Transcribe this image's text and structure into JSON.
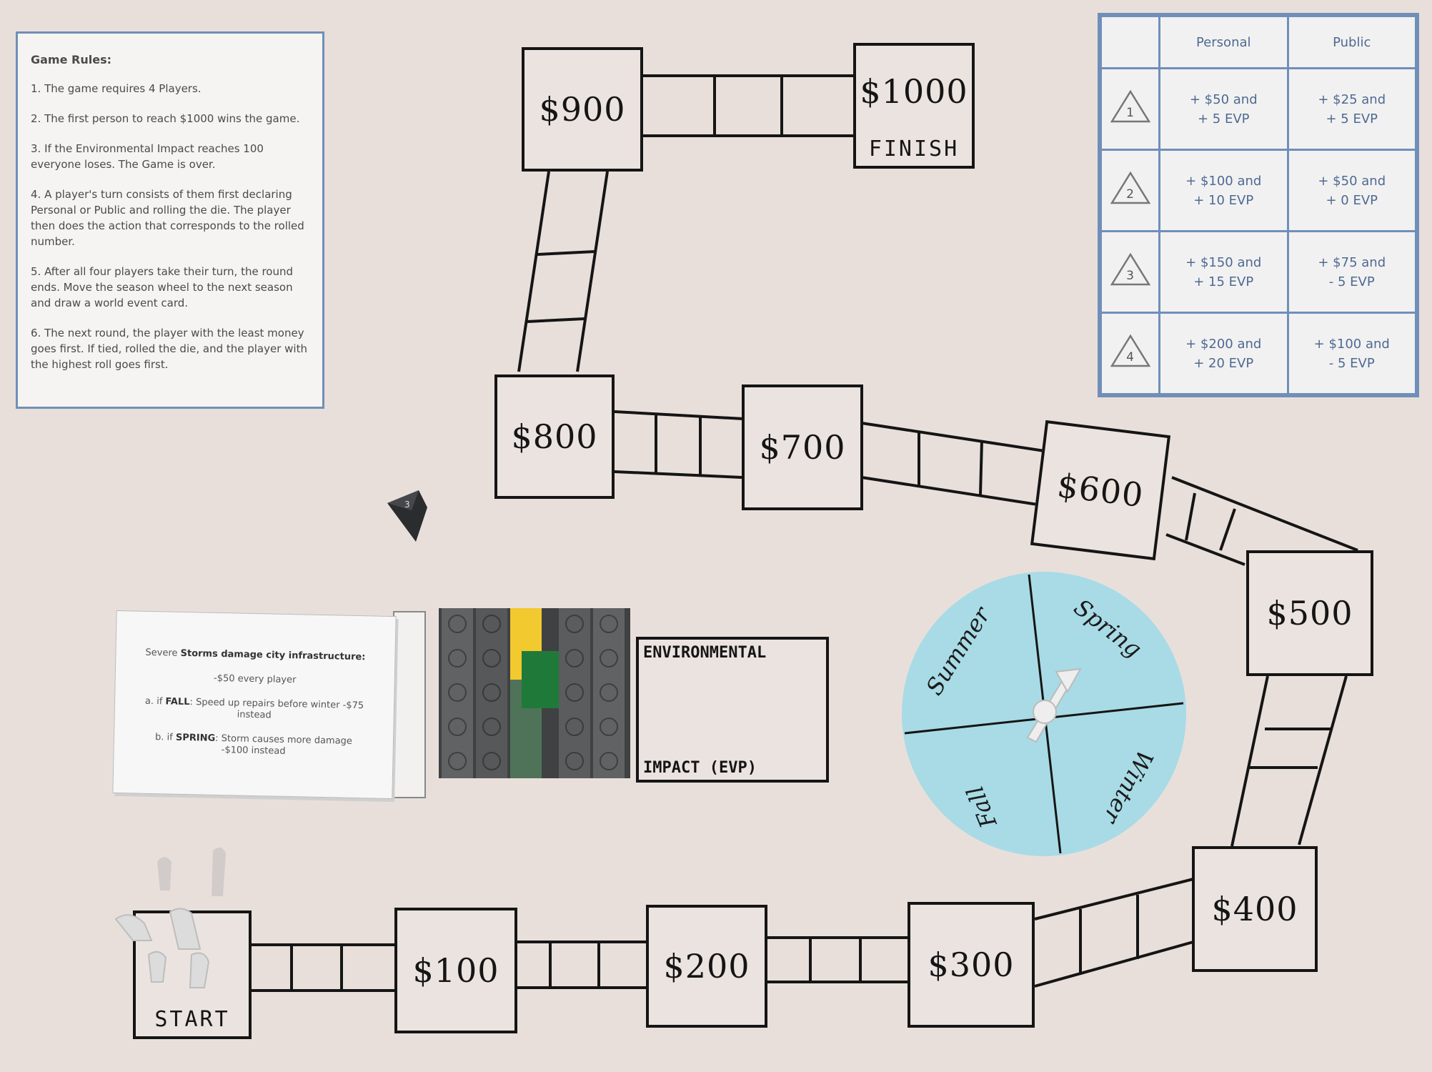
{
  "rules": {
    "title": "Game Rules:",
    "items": [
      "1. The game requires 4 Players.",
      "2. The first person to reach $1000 wins the game.",
      "3. If the Environmental Impact reaches 100 everyone loses. The Game is over.",
      "4. A player's turn consists of them first declaring Personal or Public and rolling the die. The player then does the action that corresponds to the rolled number.",
      "5. After all four players take their turn, the round ends. Move the season wheel to the next season and draw a world event card.",
      "6. The next round, the player with the least money goes first. If tied, rolled the die, and the player with the highest roll goes first."
    ]
  },
  "action_table": {
    "headers": [
      "",
      "Personal",
      "Public"
    ],
    "rows": [
      {
        "roll": "1",
        "personal": [
          "+ $50 and",
          "+ 5 EVP"
        ],
        "public": [
          "+ $25 and",
          "+ 5 EVP"
        ]
      },
      {
        "roll": "2",
        "personal": [
          "+ $100 and",
          "+ 10 EVP"
        ],
        "public": [
          "+ $50 and",
          "+ 0 EVP"
        ]
      },
      {
        "roll": "3",
        "personal": [
          "+ $150 and",
          "+ 15 EVP"
        ],
        "public": [
          "+ $75 and",
          "- 5 EVP"
        ]
      },
      {
        "roll": "4",
        "personal": [
          "+ $200 and",
          "+ 20 EVP"
        ],
        "public": [
          "+ $100 and",
          "- 5 EVP"
        ]
      }
    ]
  },
  "board": {
    "start": "START",
    "finish": "FINISH",
    "spaces": [
      "$100",
      "$200",
      "$300",
      "$400",
      "$500",
      "$600",
      "$700",
      "$800",
      "$900",
      "$1000"
    ]
  },
  "event_card": {
    "headline_pre": "Severe ",
    "headline_bold": "Storms damage city infrastructure:",
    "line1": "-$50 every player",
    "line2_pre": "a. if ",
    "line2_bold": "FALL",
    "line2_post": ": Speed up repairs before winter -$75 instead",
    "line3_pre": "b. if ",
    "line3_bold": "SPRING",
    "line3_post": ": Storm causes more damage -$100 instead"
  },
  "env_meter": {
    "label_top": "ENVIRONMENTAL",
    "label_bottom": "IMPACT (EVP)"
  },
  "season_wheel": {
    "seasons": [
      "Spring",
      "Summer",
      "Fall",
      "Winter"
    ]
  },
  "die": {
    "label": "3"
  },
  "colors": {
    "board_bg": "#e8dfdb",
    "ink": "#151515",
    "table_blue": "#6f8fb8",
    "wheel": "#a8dbe6",
    "lego_grey": "#5a5c5e",
    "lego_yellow": "#f2c92e",
    "lego_green": "#1f7a3a"
  }
}
